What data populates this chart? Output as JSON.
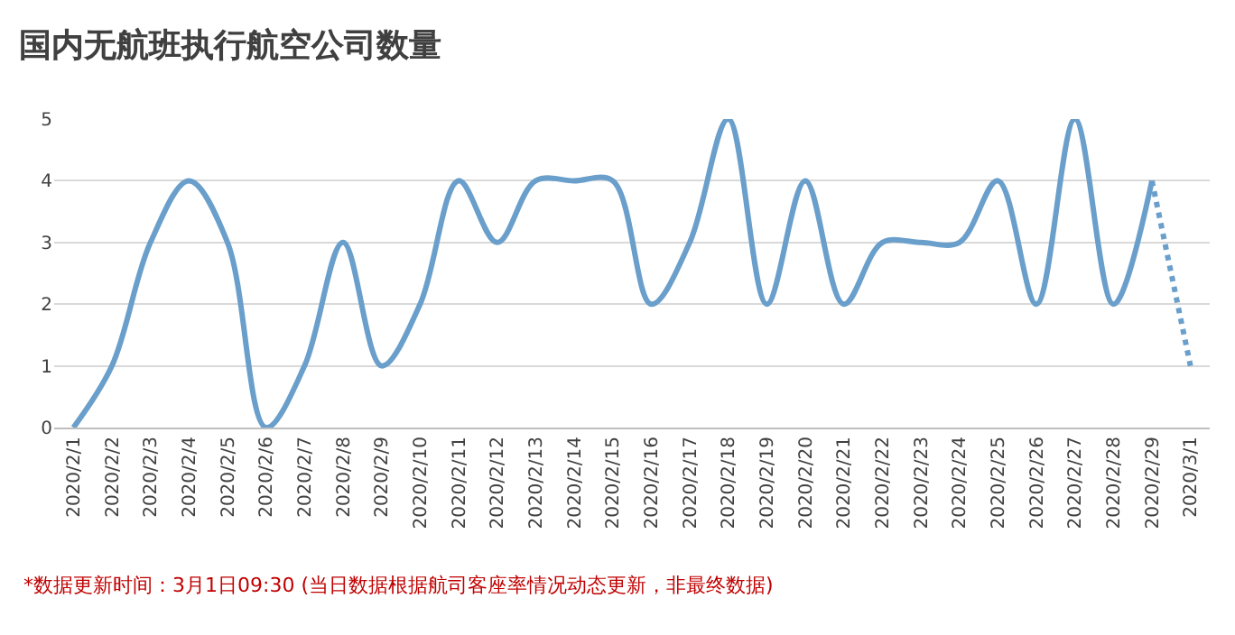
{
  "chart_data": {
    "type": "line",
    "title": "国内无航班执行航空公司数量",
    "categories": [
      "2020/2/1",
      "2020/2/2",
      "2020/2/3",
      "2020/2/4",
      "2020/2/5",
      "2020/2/6",
      "2020/2/7",
      "2020/2/8",
      "2020/2/9",
      "2020/2/10",
      "2020/2/11",
      "2020/2/12",
      "2020/2/13",
      "2020/2/14",
      "2020/2/15",
      "2020/2/16",
      "2020/2/17",
      "2020/2/18",
      "2020/2/19",
      "2020/2/20",
      "2020/2/21",
      "2020/2/22",
      "2020/2/23",
      "2020/2/24",
      "2020/2/25",
      "2020/2/26",
      "2020/2/27",
      "2020/2/28",
      "2020/2/29",
      "2020/3/1"
    ],
    "series": [
      {
        "color": "#6a9fcb",
        "line_style": "solid",
        "values": [
          0,
          1,
          3,
          4,
          3,
          0,
          1,
          3,
          1,
          2,
          4,
          3,
          4,
          4,
          4,
          2,
          3,
          5,
          2,
          4,
          2,
          3,
          3,
          3,
          4,
          2,
          5,
          2,
          4,
          null
        ]
      },
      {
        "color": "#6a9fcb",
        "line_style": "dotted",
        "values": [
          null,
          null,
          null,
          null,
          null,
          null,
          null,
          null,
          null,
          null,
          null,
          null,
          null,
          null,
          null,
          null,
          null,
          null,
          null,
          null,
          null,
          null,
          null,
          null,
          null,
          null,
          null,
          null,
          4,
          1
        ]
      }
    ],
    "ylim": [
      0,
      5
    ],
    "yticks": [
      0,
      1,
      2,
      3,
      4,
      5
    ],
    "grid": "y",
    "marker": "none",
    "annotations": [
      "*数据更新时间：3月1日09:30 (当日数据根据航司客座率情况动态更新，非最终数据)"
    ]
  }
}
